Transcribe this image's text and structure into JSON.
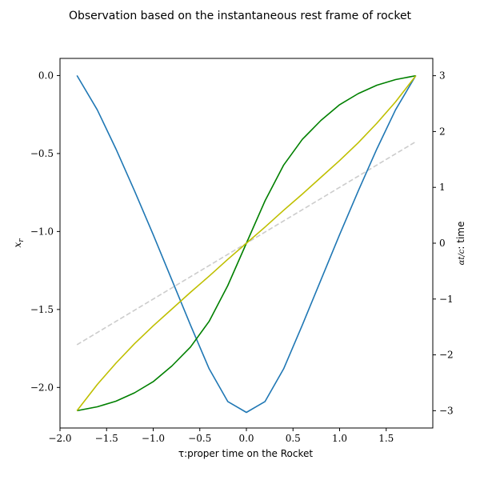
{
  "chart_data": {
    "type": "line",
    "title": "Observation based on the instantaneous rest frame of rocket",
    "xlabel": "τ:proper time on the Rocket",
    "ylabel_left": "x_r",
    "ylabel_right": "αt/c: time",
    "xlim": [
      -2.0,
      2.0
    ],
    "ylim_left": [
      -2.26,
      0.11
    ],
    "ylim_right": [
      -3.31,
      3.31
    ],
    "x_ticks": [
      "−2.0",
      "−1.5",
      "−1.0",
      "−0.5",
      "0.0",
      "0.5",
      "1.0",
      "1.5"
    ],
    "y_left_ticks": [
      "−2.0",
      "−1.5",
      "−1.0",
      "−0.5",
      "0.0"
    ],
    "y_right_ticks": [
      "−3",
      "−2",
      "−1",
      "0",
      "1",
      "2",
      "3"
    ],
    "grid": false,
    "series": [
      {
        "axis": "left",
        "color": "#1f77b4",
        "style": "solid",
        "x": [
          -1.818,
          -1.6,
          -1.4,
          -1.2,
          -1.0,
          -0.8,
          -0.6,
          -0.4,
          -0.2,
          0.0,
          0.2,
          0.4,
          0.6,
          0.8,
          1.0,
          1.2,
          1.4,
          1.6,
          1.818
        ],
        "y": [
          0.0,
          -0.22,
          -0.47,
          -0.74,
          -1.02,
          -1.31,
          -1.6,
          -1.88,
          -2.09,
          -2.16,
          -2.09,
          -1.88,
          -1.6,
          -1.31,
          -1.02,
          -0.74,
          -0.47,
          -0.22,
          0.0
        ]
      },
      {
        "axis": "right",
        "color": "#008000",
        "style": "solid",
        "x": [
          -1.818,
          -1.6,
          -1.4,
          -1.2,
          -1.0,
          -0.8,
          -0.6,
          -0.4,
          -0.2,
          0.0,
          0.2,
          0.4,
          0.6,
          0.8,
          1.0,
          1.2,
          1.4,
          1.6,
          1.818
        ],
        "y": [
          -3.0,
          -2.93,
          -2.83,
          -2.68,
          -2.48,
          -2.2,
          -1.86,
          -1.4,
          -0.76,
          0.0,
          0.76,
          1.4,
          1.86,
          2.2,
          2.48,
          2.68,
          2.83,
          2.93,
          3.0
        ]
      },
      {
        "axis": "right",
        "color": "#bfbf00",
        "style": "solid",
        "x": [
          -1.818,
          -1.6,
          -1.4,
          -1.2,
          -1.0,
          -0.8,
          -0.6,
          -0.4,
          -0.2,
          0.0,
          0.2,
          0.4,
          0.6,
          0.8,
          1.0,
          1.2,
          1.4,
          1.6,
          1.818
        ],
        "y": [
          -3.0,
          -2.53,
          -2.15,
          -1.8,
          -1.48,
          -1.18,
          -0.88,
          -0.59,
          -0.29,
          0.0,
          0.29,
          0.59,
          0.88,
          1.18,
          1.48,
          1.8,
          2.15,
          2.53,
          3.0
        ]
      },
      {
        "axis": "right",
        "color": "#cccccc",
        "style": "dashed",
        "x": [
          -1.818,
          1.818
        ],
        "y": [
          -1.818,
          1.818
        ]
      }
    ]
  }
}
